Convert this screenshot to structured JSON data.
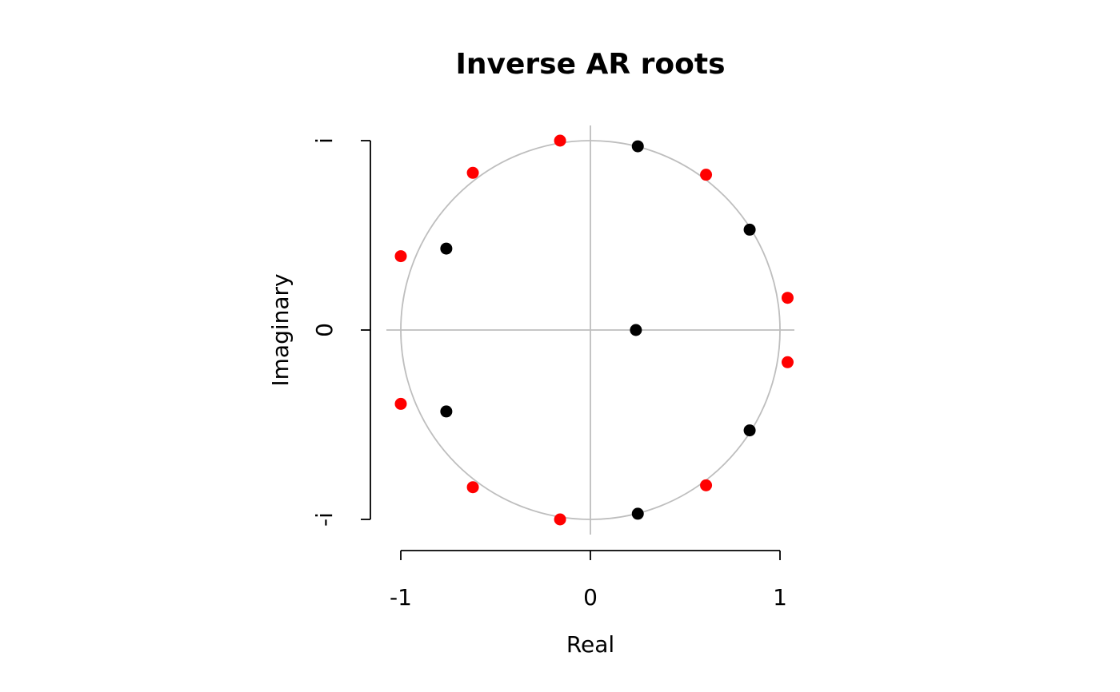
{
  "chart_data": {
    "type": "scatter",
    "title": "Inverse AR roots",
    "xlabel": "Real",
    "ylabel": "Imaginary",
    "xlim": [
      -1,
      1
    ],
    "ylim": [
      -1,
      1
    ],
    "x_ticks": [
      {
        "value": -1,
        "label": "-1"
      },
      {
        "value": 0,
        "label": "0"
      },
      {
        "value": 1,
        "label": "1"
      }
    ],
    "y_ticks": [
      {
        "value": -1,
        "label": "-i"
      },
      {
        "value": 0,
        "label": "0"
      },
      {
        "value": 1,
        "label": "i"
      }
    ],
    "unit_circle": true,
    "reference_lines": {
      "x": 0,
      "y": 0
    },
    "reference_color": "#bebebe",
    "grid": false,
    "series": [
      {
        "color": "#000000",
        "points": [
          {
            "x": 0.24,
            "y": 0.0
          },
          {
            "x": 0.25,
            "y": 0.97
          },
          {
            "x": 0.25,
            "y": -0.97
          },
          {
            "x": 0.84,
            "y": 0.53
          },
          {
            "x": 0.84,
            "y": -0.53
          },
          {
            "x": -0.76,
            "y": 0.43
          },
          {
            "x": -0.76,
            "y": -0.43
          }
        ]
      },
      {
        "color": "#ff0000",
        "points": [
          {
            "x": -0.16,
            "y": 1.0
          },
          {
            "x": -0.16,
            "y": -1.0
          },
          {
            "x": -0.62,
            "y": 0.83
          },
          {
            "x": -0.62,
            "y": -0.83
          },
          {
            "x": 0.61,
            "y": 0.82
          },
          {
            "x": 0.61,
            "y": -0.82
          },
          {
            "x": -1.0,
            "y": 0.39
          },
          {
            "x": -1.0,
            "y": -0.39
          },
          {
            "x": 1.04,
            "y": 0.17
          },
          {
            "x": 1.04,
            "y": -0.17
          }
        ]
      }
    ]
  }
}
